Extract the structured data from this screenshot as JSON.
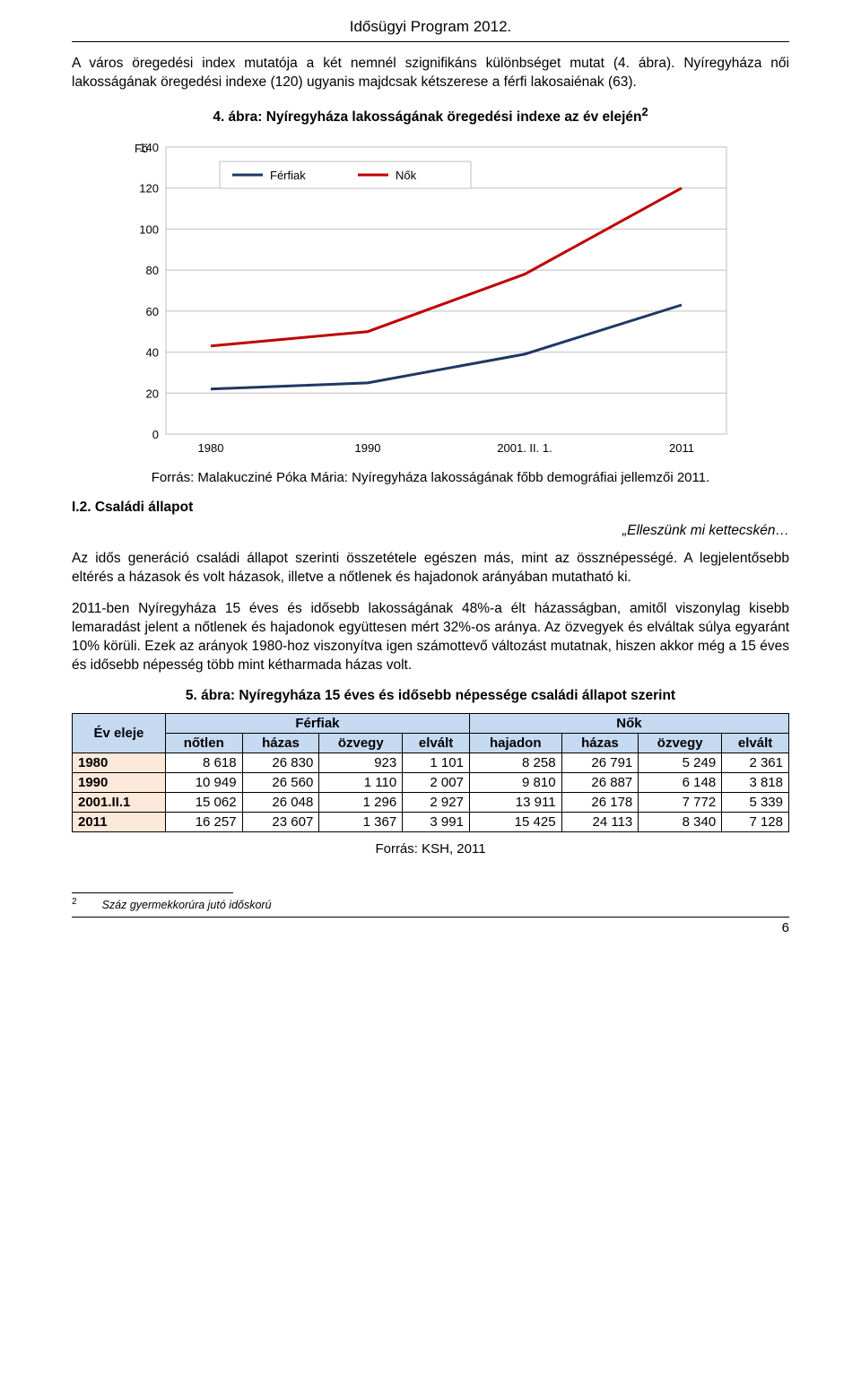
{
  "header": {
    "title": "Idősügyi Program 2012."
  },
  "para1": "A város öregedési index mutatója a két nemnél szignifikáns különbséget mutat (4. ábra). Nyíregyháza női lakosságának öregedési indexe (120) ugyanis majdcsak kétszerese a férfi lakosaiénak (63).",
  "fig4": {
    "caption_prefix": "4. ábra: Nyíregyháza lakosságának öregedési indexe az év elején",
    "footref": "2",
    "ylabel": "Fő",
    "ylim": [
      0,
      140
    ],
    "ytick_step": 20,
    "categories": [
      "1980",
      "1990",
      "2001. II. 1.",
      "2011"
    ],
    "series": [
      {
        "name": "Férfiak",
        "color": "#1f3864",
        "values": [
          22,
          25,
          39,
          63
        ],
        "width": 3
      },
      {
        "name": "Nők",
        "color": "#c00000",
        "values": [
          43,
          50,
          78,
          120
        ],
        "width": 3
      }
    ],
    "background_color": "#ffffff",
    "grid_color": "#bfbfbf",
    "axis_color": "#808080",
    "plot_border_color": "#bfbfbf",
    "tick_fontsize": 13,
    "legend_fontsize": 13,
    "legend_pos": "top-inside"
  },
  "source_chart": "Forrás: Malakucziné Póka Mária: Nyíregyháza lakosságának főbb demográfiai jellemzői 2011.",
  "section": "I.2. Családi állapot",
  "quote": "„Elleszünk mi kettecskén…",
  "para2": "Az idős generáció családi állapot szerinti összetétele egészen más, mint az össznépességé. A legjelentősebb eltérés a házasok és volt házasok, illetve a nőtlenek és hajadonok arányában mutatható ki.",
  "para3": "2011-ben Nyíregyháza 15 éves és idősebb lakosságának 48%-a élt házasságban, amitől viszonylag kisebb lemaradást jelent a nőtlenek és hajadonok együttesen mért 32%-os aránya. Az özvegyek és elváltak súlya egyaránt 10% körüli. Ezek az arányok 1980-hoz viszonyítva igen számottevő változást mutatnak, hiszen akkor még a 15 éves és idősebb népesség több mint kétharmada házas volt.",
  "table": {
    "caption": "5. ábra: Nyíregyháza 15 éves és idősebb népessége családi állapot szerint",
    "corner": "Év eleje",
    "group_headers": [
      "Férfiak",
      "Nők"
    ],
    "sub_headers_m": [
      "nőtlen",
      "házas",
      "özvegy",
      "elvált"
    ],
    "sub_headers_f": [
      "hajadon",
      "házas",
      "özvegy",
      "elvált"
    ],
    "rows": [
      {
        "year": "1980",
        "cells": [
          "8 618",
          "26 830",
          "923",
          "1 101",
          "8 258",
          "26 791",
          "5 249",
          "2 361"
        ]
      },
      {
        "year": "1990",
        "cells": [
          "10 949",
          "26 560",
          "1 110",
          "2 007",
          "9 810",
          "26 887",
          "6 148",
          "3 818"
        ]
      },
      {
        "year": "2001.II.1",
        "cells": [
          "15 062",
          "26 048",
          "1 296",
          "2 927",
          "13 911",
          "26 178",
          "7 772",
          "5 339"
        ]
      },
      {
        "year": "2011",
        "cells": [
          "16 257",
          "23 607",
          "1 367",
          "3 991",
          "15 425",
          "24 113",
          "8 340",
          "7 128"
        ]
      }
    ],
    "header_bg": "#c5d9f1",
    "rowhead_bg": "#fde9d9"
  },
  "source_table": "Forrás: KSH, 2011",
  "footnote": {
    "num": "2",
    "text": "Száz gyermekkorúra jutó időskorú"
  },
  "page_number": "6"
}
